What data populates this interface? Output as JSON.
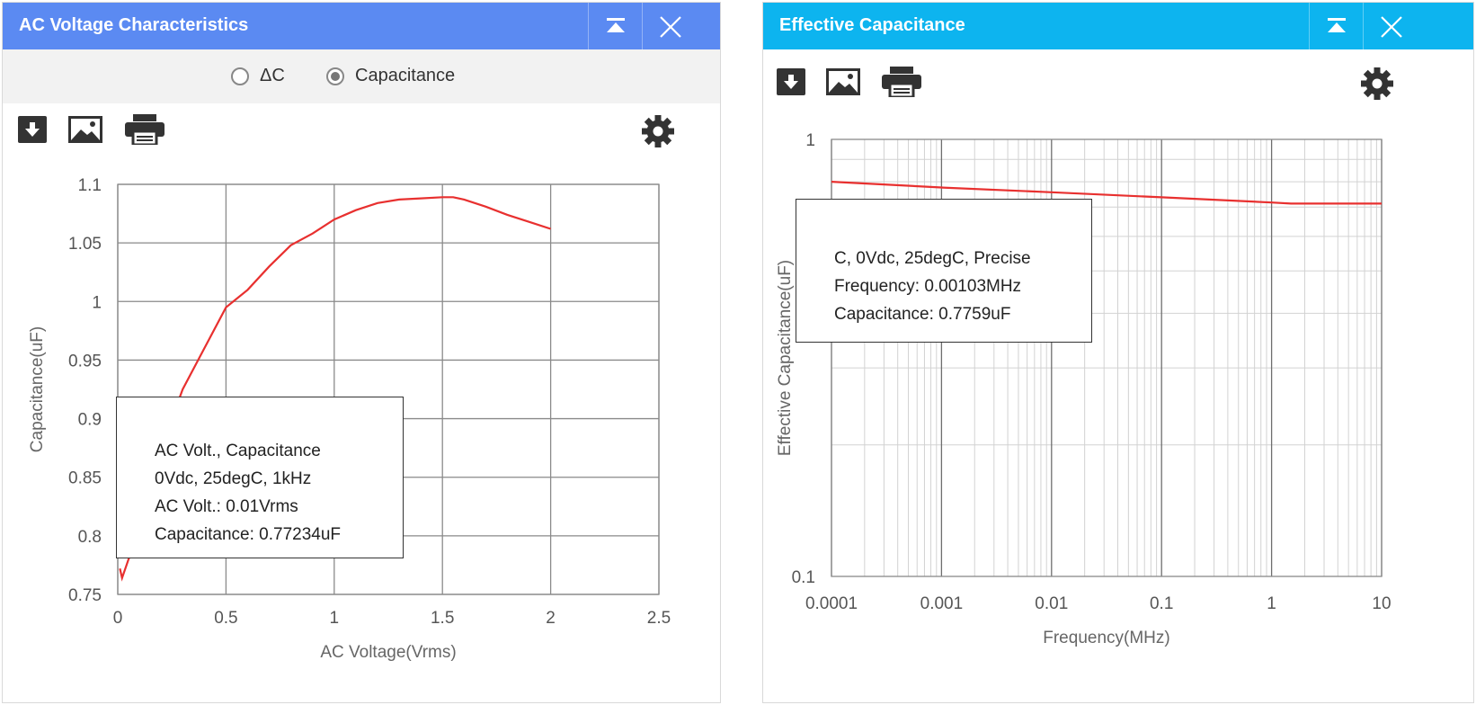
{
  "left_panel": {
    "title": "AC Voltage Characteristics",
    "radio_options": [
      {
        "label": "ΔC",
        "selected": false
      },
      {
        "label": "Capacitance",
        "selected": true
      }
    ],
    "tooltip": [
      "AC Volt., Capacitance",
      "0Vdc, 25degC, 1kHz",
      "AC Volt.: 0.01Vrms",
      "Capacitance: 0.77234uF"
    ],
    "colors": {
      "title_bar": "#5b8af2",
      "line": "#e8302f"
    }
  },
  "right_panel": {
    "title": "Effective Capacitance",
    "tooltip": [
      "C, 0Vdc, 25degC, Precise",
      "Frequency: 0.00103MHz",
      "Capacitance: 0.7759uF"
    ],
    "colors": {
      "title_bar": "#0db4ef",
      "line": "#e8302f"
    }
  },
  "icons": [
    "collapse-icon",
    "close-icon",
    "download-icon",
    "image-icon",
    "print-icon",
    "gear-icon"
  ],
  "chart_data": [
    {
      "type": "line",
      "xlabel": "AC Voltage(Vrms)",
      "ylabel": "Capacitance(uF)",
      "xlim": [
        0,
        2.5
      ],
      "ylim": [
        0.75,
        1.1
      ],
      "x_ticks": [
        "0",
        "0.5",
        "1",
        "1.5",
        "2",
        "2.5"
      ],
      "y_ticks": [
        "0.75",
        "0.8",
        "0.85",
        "0.9",
        "0.95",
        "1",
        "1.05",
        "1.1"
      ],
      "grid": true,
      "series": [
        {
          "x": [
            0.01,
            0.02,
            0.05,
            0.1,
            0.15,
            0.2,
            0.25,
            0.3,
            0.4,
            0.5,
            0.6,
            0.7,
            0.8,
            0.9,
            1.0,
            1.1,
            1.2,
            1.3,
            1.4,
            1.5,
            1.55,
            1.6,
            1.7,
            1.8,
            1.9,
            2.0
          ],
          "y": [
            0.772,
            0.764,
            0.78,
            0.8,
            0.825,
            0.85,
            0.9,
            0.925,
            0.96,
            0.995,
            1.01,
            1.03,
            1.048,
            1.058,
            1.07,
            1.078,
            1.084,
            1.087,
            1.088,
            1.089,
            1.089,
            1.087,
            1.081,
            1.074,
            1.068,
            1.062
          ]
        }
      ]
    },
    {
      "type": "line",
      "xlabel": "Frequency(MHz)",
      "ylabel": "Effective Capacitance(uF)",
      "xlim": [
        0.0001,
        10
      ],
      "ylim": [
        0.1,
        1
      ],
      "log_x": true,
      "log_y": true,
      "x_ticks": [
        "0.0001",
        "0.001",
        "0.01",
        "0.1",
        "1",
        "10"
      ],
      "y_ticks": [
        "0.1",
        "1"
      ],
      "grid": true,
      "series": [
        {
          "x": [
            0.0001,
            0.001,
            0.00103,
            0.01,
            0.1,
            1,
            1.5,
            10
          ],
          "y": [
            0.8,
            0.776,
            0.7759,
            0.757,
            0.737,
            0.717,
            0.713,
            0.713
          ]
        }
      ]
    }
  ]
}
